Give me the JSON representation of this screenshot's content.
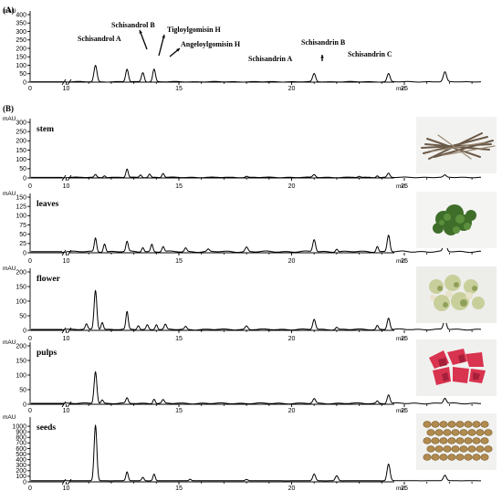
{
  "chart_data": {
    "type": "line",
    "x_unit": "min",
    "y_unit": "mAU",
    "x_ticks": [
      0,
      10,
      15,
      20,
      25
    ],
    "x_tick_labels": [
      "0",
      "10",
      "15",
      "20",
      "25"
    ],
    "x_axis_break": true,
    "x_display_range": [
      7,
      28.5
    ],
    "panels": [
      {
        "panel_label": "(A)",
        "sample": "",
        "y_ticks": [
          0,
          50,
          100,
          150,
          200,
          250,
          300,
          350,
          400
        ],
        "ylim": [
          0,
          400
        ],
        "baseline": 2,
        "peaks": [
          {
            "x": 11.3,
            "height": 97,
            "width": 0.13,
            "label": "Schisandrol A"
          },
          {
            "x": 12.7,
            "height": 75,
            "width": 0.12,
            "label": "Schisandrol B"
          },
          {
            "x": 13.4,
            "height": 55,
            "width": 0.12,
            "label": "Tigloylgomisin H"
          },
          {
            "x": 13.9,
            "height": 75,
            "width": 0.12,
            "label": "Angeloylgomisin H"
          },
          {
            "x": 21.0,
            "height": 48,
            "width": 0.13,
            "label": "Schisandrin A"
          },
          {
            "x": 24.3,
            "height": 48,
            "width": 0.13,
            "label": "Schisandrin B"
          },
          {
            "x": 26.8,
            "height": 58,
            "width": 0.14,
            "label": "Schisandrin C"
          }
        ]
      },
      {
        "panel_label": "(B)",
        "sample": "stem",
        "y_ticks": [
          0,
          50,
          100,
          150,
          200,
          250,
          300
        ],
        "ylim": [
          0,
          300
        ],
        "baseline": 3,
        "peaks": [
          {
            "x": 11.3,
            "height": 15,
            "width": 0.1
          },
          {
            "x": 11.7,
            "height": 10,
            "width": 0.1
          },
          {
            "x": 12.7,
            "height": 45,
            "width": 0.1
          },
          {
            "x": 13.3,
            "height": 14,
            "width": 0.1
          },
          {
            "x": 13.7,
            "height": 18,
            "width": 0.1
          },
          {
            "x": 14.3,
            "height": 22,
            "width": 0.1
          },
          {
            "x": 18.0,
            "height": 6,
            "width": 0.1
          },
          {
            "x": 21.0,
            "height": 15,
            "width": 0.12
          },
          {
            "x": 23.0,
            "height": 6,
            "width": 0.1
          },
          {
            "x": 23.8,
            "height": 10,
            "width": 0.1
          },
          {
            "x": 24.3,
            "height": 22,
            "width": 0.12
          },
          {
            "x": 26.8,
            "height": 12,
            "width": 0.12
          }
        ]
      },
      {
        "panel_label": "",
        "sample": "leaves",
        "y_ticks": [
          0,
          25,
          50,
          75,
          100,
          125,
          150
        ],
        "ylim": [
          0,
          150
        ],
        "baseline": 3,
        "peaks": [
          {
            "x": 11.3,
            "height": 37,
            "width": 0.1
          },
          {
            "x": 11.7,
            "height": 22,
            "width": 0.1
          },
          {
            "x": 12.7,
            "height": 27,
            "width": 0.1
          },
          {
            "x": 13.4,
            "height": 12,
            "width": 0.1
          },
          {
            "x": 13.8,
            "height": 20,
            "width": 0.1
          },
          {
            "x": 14.3,
            "height": 14,
            "width": 0.1
          },
          {
            "x": 15.3,
            "height": 10,
            "width": 0.1
          },
          {
            "x": 16.3,
            "height": 6,
            "width": 0.1
          },
          {
            "x": 18.0,
            "height": 12,
            "width": 0.12
          },
          {
            "x": 21.0,
            "height": 33,
            "width": 0.12
          },
          {
            "x": 22.0,
            "height": 8,
            "width": 0.1
          },
          {
            "x": 23.8,
            "height": 15,
            "width": 0.1
          },
          {
            "x": 24.3,
            "height": 45,
            "width": 0.12
          },
          {
            "x": 26.8,
            "height": 35,
            "width": 0.13
          }
        ]
      },
      {
        "panel_label": "",
        "sample": "flower",
        "y_ticks": [
          0,
          50,
          100,
          150,
          200
        ],
        "ylim": [
          0,
          200
        ],
        "baseline": 3,
        "peaks": [
          {
            "x": 10.9,
            "height": 18,
            "width": 0.1
          },
          {
            "x": 11.3,
            "height": 135,
            "width": 0.12
          },
          {
            "x": 11.6,
            "height": 25,
            "width": 0.1
          },
          {
            "x": 12.7,
            "height": 60,
            "width": 0.1
          },
          {
            "x": 13.2,
            "height": 14,
            "width": 0.1
          },
          {
            "x": 13.6,
            "height": 16,
            "width": 0.1
          },
          {
            "x": 14.0,
            "height": 18,
            "width": 0.1
          },
          {
            "x": 14.4,
            "height": 17,
            "width": 0.1
          },
          {
            "x": 15.3,
            "height": 10,
            "width": 0.1
          },
          {
            "x": 18.0,
            "height": 12,
            "width": 0.12
          },
          {
            "x": 21.0,
            "height": 35,
            "width": 0.12
          },
          {
            "x": 22.0,
            "height": 8,
            "width": 0.1
          },
          {
            "x": 23.8,
            "height": 14,
            "width": 0.1
          },
          {
            "x": 24.3,
            "height": 40,
            "width": 0.12
          },
          {
            "x": 26.8,
            "height": 35,
            "width": 0.13
          }
        ]
      },
      {
        "panel_label": "",
        "sample": "pulps",
        "y_ticks": [
          0,
          50,
          100,
          150,
          200
        ],
        "ylim": [
          0,
          200
        ],
        "baseline": 3,
        "peaks": [
          {
            "x": 11.3,
            "height": 110,
            "width": 0.12
          },
          {
            "x": 11.6,
            "height": 12,
            "width": 0.1
          },
          {
            "x": 12.7,
            "height": 18,
            "width": 0.1
          },
          {
            "x": 13.9,
            "height": 16,
            "width": 0.1
          },
          {
            "x": 14.3,
            "height": 12,
            "width": 0.1
          },
          {
            "x": 21.0,
            "height": 16,
            "width": 0.12
          },
          {
            "x": 23.8,
            "height": 8,
            "width": 0.1
          },
          {
            "x": 24.3,
            "height": 30,
            "width": 0.12
          },
          {
            "x": 26.8,
            "height": 18,
            "width": 0.13
          }
        ]
      },
      {
        "panel_label": "",
        "sample": "seeds",
        "y_ticks": [
          0,
          100,
          200,
          300,
          400,
          500,
          600,
          700,
          800,
          900,
          1000
        ],
        "ylim": [
          0,
          1100
        ],
        "baseline": 20,
        "peaks": [
          {
            "x": 11.3,
            "height": 1000,
            "width": 0.12
          },
          {
            "x": 12.7,
            "height": 160,
            "width": 0.1
          },
          {
            "x": 13.4,
            "height": 60,
            "width": 0.1
          },
          {
            "x": 13.9,
            "height": 120,
            "width": 0.1
          },
          {
            "x": 15.5,
            "height": 30,
            "width": 0.1
          },
          {
            "x": 18.0,
            "height": 25,
            "width": 0.12
          },
          {
            "x": 21.0,
            "height": 120,
            "width": 0.12
          },
          {
            "x": 22.0,
            "height": 90,
            "width": 0.12
          },
          {
            "x": 24.3,
            "height": 300,
            "width": 0.13
          },
          {
            "x": 26.8,
            "height": 100,
            "width": 0.13
          }
        ]
      }
    ]
  }
}
